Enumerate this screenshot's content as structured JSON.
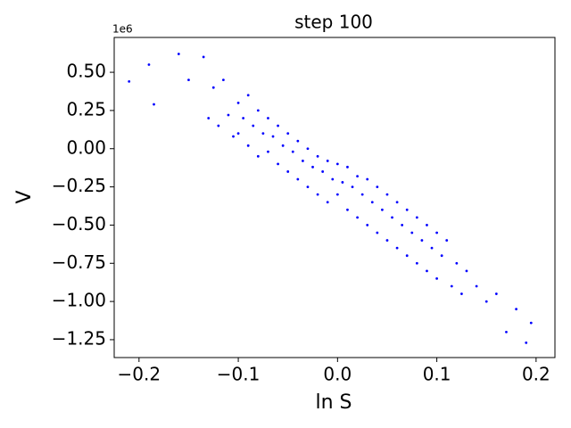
{
  "chart_data": {
    "type": "scatter",
    "title": "step 100",
    "x_label": "ln S",
    "y_label": "V",
    "y_offset_label": "1e6",
    "color": "#0000ff",
    "xlim": [
      -0.225,
      0.219
    ],
    "ylim": [
      -1.367,
      0.728
    ],
    "xticks": [
      {
        "value": -0.2,
        "label": "−0.2"
      },
      {
        "value": -0.1,
        "label": "−0.1"
      },
      {
        "value": 0,
        "label": "0.0"
      },
      {
        "value": 0.1,
        "label": "0.1"
      },
      {
        "value": 0.2,
        "label": "0.2"
      }
    ],
    "yticks": [
      {
        "value": 0.5,
        "label": "0.50"
      },
      {
        "value": 0.25,
        "label": "0.25"
      },
      {
        "value": 0,
        "label": "0.00"
      },
      {
        "value": -0.25,
        "label": "−0.25"
      },
      {
        "value": -0.5,
        "label": "−0.50"
      },
      {
        "value": -0.75,
        "label": "−0.75"
      },
      {
        "value": -1,
        "label": "−1.00"
      },
      {
        "value": -1.25,
        "label": "−1.25"
      }
    ],
    "x": [
      -0.21,
      -0.19,
      -0.185,
      -0.16,
      -0.15,
      -0.135,
      -0.13,
      -0.125,
      -0.12,
      -0.115,
      -0.11,
      -0.105,
      -0.1,
      -0.1,
      -0.095,
      -0.09,
      -0.09,
      -0.085,
      -0.08,
      -0.08,
      -0.075,
      -0.07,
      -0.07,
      -0.065,
      -0.06,
      -0.06,
      -0.055,
      -0.05,
      -0.05,
      -0.045,
      -0.04,
      -0.04,
      -0.035,
      -0.03,
      -0.03,
      -0.025,
      -0.02,
      -0.02,
      -0.015,
      -0.01,
      -0.01,
      -0.005,
      0,
      0,
      0.005,
      0.01,
      0.01,
      0.015,
      0.02,
      0.02,
      0.025,
      0.03,
      0.03,
      0.035,
      0.04,
      0.04,
      0.045,
      0.05,
      0.05,
      0.055,
      0.06,
      0.06,
      0.065,
      0.07,
      0.07,
      0.075,
      0.08,
      0.08,
      0.085,
      0.09,
      0.09,
      0.095,
      0.1,
      0.1,
      0.105,
      0.11,
      0.115,
      0.12,
      0.125,
      0.13,
      0.14,
      0.15,
      0.16,
      0.17,
      0.18,
      0.19,
      0.195
    ],
    "values": [
      0.44,
      0.55,
      0.29,
      0.62,
      0.45,
      0.6,
      0.2,
      0.4,
      0.15,
      0.45,
      0.22,
      0.08,
      0.3,
      0.1,
      0.2,
      0.35,
      0.02,
      0.15,
      0.25,
      -0.05,
      0.1,
      0.2,
      -0.02,
      0.08,
      0.15,
      -0.1,
      0.02,
      0.1,
      -0.15,
      -0.02,
      0.05,
      -0.2,
      -0.08,
      0,
      -0.25,
      -0.12,
      -0.05,
      -0.3,
      -0.15,
      -0.08,
      -0.35,
      -0.2,
      -0.1,
      -0.3,
      -0.22,
      -0.12,
      -0.4,
      -0.25,
      -0.18,
      -0.45,
      -0.3,
      -0.2,
      -0.5,
      -0.35,
      -0.25,
      -0.55,
      -0.4,
      -0.3,
      -0.6,
      -0.45,
      -0.35,
      -0.65,
      -0.5,
      -0.4,
      -0.7,
      -0.55,
      -0.45,
      -0.75,
      -0.6,
      -0.5,
      -0.8,
      -0.65,
      -0.55,
      -0.85,
      -0.7,
      -0.6,
      -0.9,
      -0.75,
      -0.95,
      -0.8,
      -0.9,
      -1.0,
      -0.95,
      -1.2,
      -1.05,
      -1.27,
      -1.14
    ],
    "grid": false
  }
}
